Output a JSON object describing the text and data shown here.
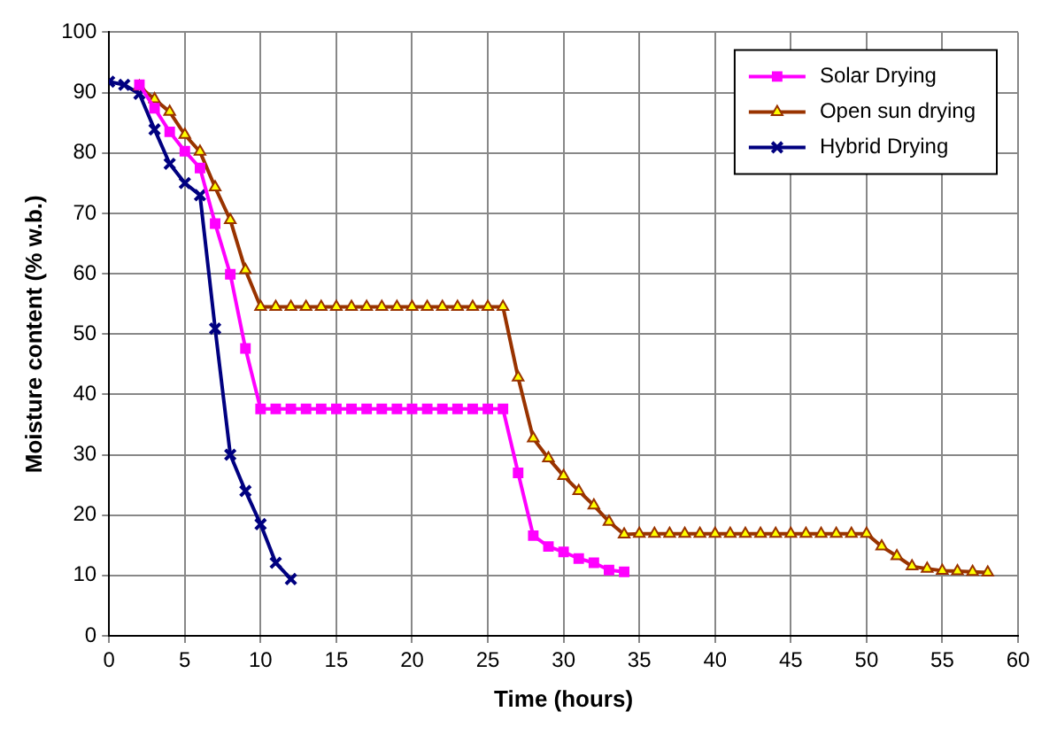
{
  "chart_data": {
    "type": "line",
    "xlabel": "Time (hours)",
    "ylabel": "Moisture content (% w.b.)",
    "xlim": [
      0,
      60
    ],
    "xticks": [
      0,
      5,
      10,
      15,
      20,
      25,
      30,
      35,
      40,
      45,
      50,
      55,
      60
    ],
    "ylim": [
      0,
      100
    ],
    "yticks": [
      0,
      10,
      20,
      30,
      40,
      50,
      60,
      70,
      80,
      90,
      100
    ],
    "grid": true,
    "legend": "top right",
    "line_style": "solid",
    "series": [
      {
        "name": "Solar Drying",
        "color": "#ff00ff",
        "marker": "square",
        "x": [
          2,
          3,
          4,
          5,
          6,
          7,
          8,
          9,
          10,
          11,
          12,
          13,
          14,
          15,
          16,
          17,
          18,
          19,
          20,
          21,
          22,
          23,
          24,
          25,
          26,
          27,
          28,
          29,
          30,
          31,
          32,
          33,
          34
        ],
        "values": [
          91.3,
          87.4,
          83.5,
          80.3,
          77.5,
          68.3,
          59.9,
          47.6,
          37.6,
          37.6,
          37.6,
          37.6,
          37.6,
          37.6,
          37.6,
          37.6,
          37.6,
          37.6,
          37.6,
          37.6,
          37.6,
          37.6,
          37.6,
          37.6,
          37.6,
          27,
          16.6,
          14.8,
          13.9,
          12.8,
          12.1,
          10.9,
          10.6
        ]
      },
      {
        "name": "Open sun drying",
        "color": "#993300",
        "marker": "triangle",
        "x": [
          2,
          3,
          4,
          5,
          6,
          7,
          8,
          9,
          10,
          11,
          12,
          13,
          14,
          15,
          16,
          17,
          18,
          19,
          20,
          21,
          22,
          23,
          24,
          25,
          26,
          27,
          28,
          29,
          30,
          31,
          32,
          33,
          34,
          35,
          36,
          37,
          38,
          39,
          40,
          41,
          42,
          43,
          44,
          45,
          46,
          47,
          48,
          49,
          50,
          51,
          52,
          53,
          54,
          55,
          56,
          57,
          58
        ],
        "values": [
          91,
          88.9,
          86.8,
          83,
          80.2,
          74.3,
          68.9,
          60.6,
          54.5,
          54.5,
          54.5,
          54.5,
          54.5,
          54.5,
          54.5,
          54.5,
          54.5,
          54.5,
          54.5,
          54.5,
          54.5,
          54.5,
          54.5,
          54.5,
          54.5,
          42.8,
          32.7,
          29.4,
          26.5,
          24,
          21.6,
          18.9,
          16.8,
          16.9,
          16.9,
          16.9,
          16.9,
          16.9,
          16.9,
          16.9,
          16.9,
          16.9,
          16.9,
          16.9,
          16.9,
          16.9,
          16.9,
          16.9,
          16.9,
          14.8,
          13.2,
          11.5,
          11.1,
          10.8,
          10.7,
          10.6,
          10.5
        ]
      },
      {
        "name": "Hybrid Drying",
        "color": "#000080",
        "marker": "cross",
        "x": [
          0,
          1,
          2,
          3,
          4,
          5,
          6,
          7,
          8,
          9,
          10,
          11,
          12
        ],
        "values": [
          91.8,
          91.3,
          89.8,
          83.9,
          78.2,
          75,
          73,
          50.9,
          30,
          24,
          18.5,
          12.1,
          9.4
        ]
      }
    ]
  }
}
